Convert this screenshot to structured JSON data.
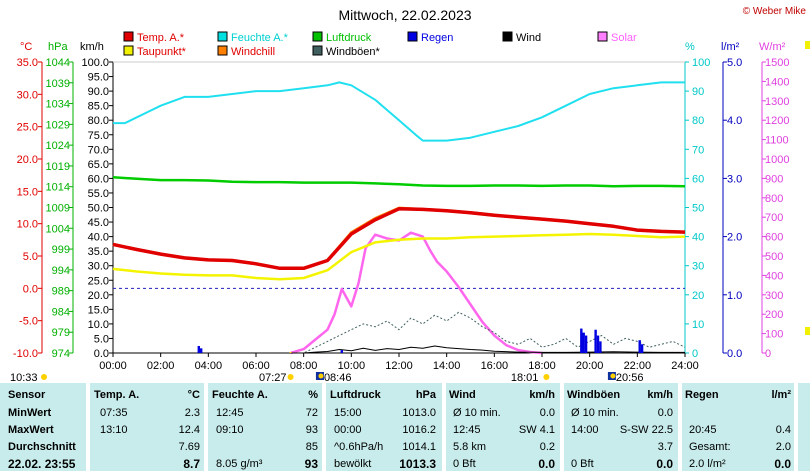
{
  "title": "Mittwoch, 22.02.2023",
  "copyright": "© Weber Mike",
  "chart_data": {
    "type": "line",
    "x_ticks": [
      "00:00",
      "02:00",
      "04:00",
      "06:00",
      "08:00",
      "10:00",
      "12:00",
      "14:00",
      "16:00",
      "18:00",
      "20:00",
      "22:00",
      "24:00"
    ],
    "axis_units": {
      "temp": "°C",
      "pressure": "hPa",
      "wind": "km/h",
      "humidity": "%",
      "rain": "l/m²",
      "solar": "W/m²"
    },
    "axes": {
      "temp": {
        "ticks": [
          "35.0",
          "30.0",
          "25.0",
          "20.0",
          "15.0",
          "10.0",
          "5.0",
          "0.0",
          "-5.0",
          "-10.0"
        ],
        "range": [
          -10,
          35
        ],
        "color": "#e00000"
      },
      "pressure": {
        "ticks": [
          "1044",
          "1039",
          "1034",
          "1029",
          "1024",
          "1019",
          "1014",
          "1009",
          "1004",
          "999",
          "994",
          "989",
          "984",
          "979",
          "974"
        ],
        "range": [
          974,
          1044
        ],
        "color": "#00b000"
      },
      "wind": {
        "ticks": [
          "100.0",
          "95.0",
          "90.0",
          "85.0",
          "80.0",
          "75.0",
          "70.0",
          "65.0",
          "60.0",
          "55.0",
          "50.0",
          "45.0",
          "40.0",
          "35.0",
          "30.0",
          "25.0",
          "20.0",
          "15.0",
          "10.0",
          "5.0",
          "0.0"
        ],
        "range": [
          0,
          100
        ],
        "color": "#000000"
      },
      "humidity": {
        "ticks": [
          "100",
          "90",
          "80",
          "70",
          "60",
          "50",
          "40",
          "30",
          "20",
          "10",
          "0"
        ],
        "range": [
          0,
          100
        ],
        "color": "#00c8c8"
      },
      "rain": {
        "ticks": [
          "5.0",
          "4.0",
          "3.0",
          "2.0",
          "1.0",
          "0.0"
        ],
        "range": [
          0,
          5
        ],
        "color": "#0000c0"
      },
      "solar": {
        "ticks": [
          "1500",
          "1400",
          "1300",
          "1200",
          "1100",
          "1000",
          "900",
          "800",
          "700",
          "600",
          "500",
          "400",
          "300",
          "200",
          "100",
          "0"
        ],
        "range": [
          0,
          1500
        ],
        "color": "#e040e0"
      }
    },
    "legend": [
      {
        "name": "Temp. A.*",
        "color": "#e00000"
      },
      {
        "name": "Feuchte A.*",
        "color": "#00e0e0"
      },
      {
        "name": "Luftdruck",
        "color": "#00c000"
      },
      {
        "name": "Regen",
        "color": "#0000e0"
      },
      {
        "name": "Wind",
        "color": "#000000"
      },
      {
        "name": "Solar",
        "color": "#ff80ff"
      },
      {
        "name": "Taupunkt*",
        "color": "#f0f000"
      },
      {
        "name": "Windchill",
        "color": "#ff8000"
      },
      {
        "name": "Windböen*",
        "color": "#406060"
      }
    ],
    "series": [
      {
        "name": "Temp. A.*",
        "axis": "temp",
        "hours": [
          0,
          1,
          2,
          3,
          4,
          5,
          6,
          7,
          8,
          9,
          10,
          11,
          12,
          13,
          14,
          15,
          16,
          17,
          18,
          19,
          20,
          21,
          22,
          23,
          24
        ],
        "values": [
          6.8,
          6.0,
          5.3,
          4.7,
          4.4,
          4.3,
          3.8,
          3.1,
          3.1,
          4.3,
          8.4,
          10.6,
          12.3,
          12.2,
          12.0,
          11.7,
          11.3,
          11.0,
          10.7,
          10.4,
          10.0,
          9.6,
          9.0,
          8.8,
          8.7
        ]
      },
      {
        "name": "Windchill",
        "axis": "temp",
        "hours": [
          0,
          1,
          2,
          3,
          4,
          5,
          6,
          7,
          8,
          9,
          10,
          11,
          12,
          13,
          14,
          15,
          16,
          17,
          18,
          19,
          20,
          21,
          22,
          23,
          24
        ],
        "values": [
          6.8,
          6.0,
          5.3,
          4.7,
          4.4,
          4.3,
          3.8,
          3.1,
          3.1,
          4.3,
          8.6,
          10.8,
          12.4,
          12.2,
          12.0,
          11.7,
          11.3,
          11.0,
          10.7,
          10.4,
          10.0,
          9.6,
          9.0,
          8.8,
          8.7
        ]
      },
      {
        "name": "Taupunkt*",
        "axis": "temp",
        "hours": [
          0,
          1,
          2,
          3,
          4,
          5,
          6,
          7,
          8,
          9,
          10,
          11,
          12,
          13,
          14,
          15,
          16,
          17,
          18,
          19,
          20,
          21,
          22,
          23,
          24
        ],
        "values": [
          3.0,
          2.6,
          2.3,
          2.1,
          2.0,
          2.0,
          1.6,
          1.4,
          1.6,
          2.8,
          5.6,
          7.1,
          7.5,
          7.7,
          7.7,
          7.9,
          8.0,
          8.1,
          8.2,
          8.3,
          8.4,
          8.3,
          8.1,
          7.9,
          8.0
        ]
      },
      {
        "name": "Feuchte A.*",
        "axis": "humidity",
        "hours": [
          0,
          0.5,
          1,
          1.5,
          2,
          3,
          4,
          5,
          6,
          7,
          8,
          9,
          9.5,
          10,
          11,
          12,
          12.7,
          13,
          14,
          15,
          16,
          17,
          18,
          19,
          20,
          21,
          22,
          23,
          24
        ],
        "values": [
          79,
          79,
          81,
          83,
          85,
          88,
          88,
          89,
          90,
          90,
          91,
          92,
          93,
          92,
          87,
          80,
          75,
          73,
          73,
          74,
          76,
          78,
          81,
          85,
          89,
          91,
          92,
          93,
          93
        ]
      },
      {
        "name": "Luftdruck",
        "axis": "pressure",
        "hours": [
          0,
          1,
          2,
          3,
          4,
          5,
          6,
          7,
          8,
          9,
          10,
          11,
          12,
          13,
          14,
          15,
          16,
          17,
          18,
          19,
          20,
          21,
          22,
          23,
          24
        ],
        "values": [
          1016.3,
          1015.9,
          1015.6,
          1015.6,
          1015.5,
          1015.2,
          1015.1,
          1015.1,
          1015.0,
          1015.0,
          1015.0,
          1014.8,
          1014.6,
          1014.3,
          1014.2,
          1014.2,
          1014.3,
          1014.3,
          1014.2,
          1014.3,
          1014.3,
          1014.1,
          1014.2,
          1014.2,
          1014.1
        ]
      },
      {
        "name": "Solar",
        "axis": "solar",
        "hours": [
          7.45,
          8.0,
          8.5,
          9.0,
          9.3,
          9.6,
          10.0,
          10.3,
          10.6,
          11.0,
          11.5,
          12.0,
          12.5,
          13.0,
          13.3,
          13.6,
          14.0,
          14.5,
          15.0,
          15.5,
          16.0,
          16.5,
          17.0,
          17.5,
          18.0,
          18.02
        ],
        "values": [
          0,
          20,
          70,
          120,
          200,
          330,
          240,
          360,
          540,
          610,
          590,
          580,
          620,
          600,
          530,
          470,
          420,
          340,
          250,
          160,
          90,
          40,
          15,
          5,
          0,
          0
        ]
      },
      {
        "name": "Wind",
        "axis": "wind",
        "hours": [
          0,
          8,
          8.5,
          9,
          9.5,
          10,
          10.5,
          11,
          11.5,
          12,
          12.5,
          13,
          13.5,
          14,
          14.5,
          15,
          15.5,
          16,
          17,
          18,
          19,
          20,
          21,
          22,
          23,
          24
        ],
        "values": [
          0,
          0,
          0.3,
          0.5,
          1.2,
          0.8,
          1.6,
          0.9,
          1.5,
          1.2,
          2.0,
          1.6,
          2.4,
          1.8,
          1.5,
          1.2,
          1.0,
          0.6,
          0.3,
          0.2,
          0.2,
          0.3,
          0.4,
          0.3,
          0.2,
          0.2
        ]
      },
      {
        "name": "Windböen*",
        "axis": "wind",
        "hours": [
          0,
          8,
          8.5,
          9,
          9.5,
          10,
          10.5,
          11,
          11.5,
          12,
          12.5,
          13,
          13.5,
          14,
          14.5,
          15,
          15.5,
          16,
          16.5,
          17,
          17.5,
          18,
          18.5,
          19,
          19.5,
          20,
          20.5,
          21,
          21.5,
          22,
          22.5,
          23,
          23.5,
          24
        ],
        "values": [
          0,
          0,
          2,
          4,
          6,
          8,
          10,
          9,
          11,
          8,
          12,
          10,
          13,
          11,
          14,
          12,
          9,
          7,
          4,
          3,
          5,
          2,
          3,
          5,
          2,
          4,
          6,
          3,
          5,
          4,
          2,
          3,
          4,
          2
        ]
      },
      {
        "name": "Regen",
        "axis": "rain",
        "hours": [
          3.6,
          3.7,
          9.6,
          19.65,
          19.75,
          19.85,
          20.25,
          20.35,
          20.45,
          22.1,
          22.2
        ],
        "values": [
          0.12,
          0.08,
          0.05,
          0.42,
          0.35,
          0.3,
          0.4,
          0.3,
          0.2,
          0.22,
          0.15
        ]
      }
    ],
    "markers": {
      "sunrise": "07:27",
      "sunset": "18:01",
      "moonrise": "08:46",
      "moonset": "20:56",
      "now": "10:33"
    },
    "grid": "horizontal at 0°C (dashed)"
  },
  "stats": {
    "headers": [
      "Sensor",
      "Temp. A.",
      "°C",
      "Feuchte A.",
      "%",
      "Luftdruck",
      "hPa",
      "Wind",
      "km/h",
      "Windböen",
      "km/h",
      "Regen",
      "l/m²"
    ],
    "row_labels": [
      "MinWert",
      "MaxWert",
      "Durchschnitt",
      "22.02. 23:55"
    ],
    "temp": [
      [
        "07:35",
        "2.3"
      ],
      [
        "13:10",
        "12.4"
      ],
      [
        "",
        "7.69"
      ],
      [
        "",
        "8.7"
      ]
    ],
    "hum": [
      [
        "12:45",
        "72"
      ],
      [
        "09:10",
        "93"
      ],
      [
        "",
        "85"
      ],
      [
        "8.05 g/m³",
        "93"
      ]
    ],
    "press": [
      [
        "15:00",
        "1013.0"
      ],
      [
        "00:00",
        "1016.2"
      ],
      [
        "^0.6hPa/h",
        "1014.1"
      ],
      [
        "bewölkt",
        "1013.3"
      ]
    ],
    "wind": [
      [
        "Ø 10 min.",
        "0.0"
      ],
      [
        "12:45",
        "SW 4.1"
      ],
      [
        "5.8 km",
        "0.2"
      ],
      [
        "0 Bft",
        "0.0"
      ]
    ],
    "gust": [
      [
        "Ø 10 min.",
        "0.0"
      ],
      [
        "14:00",
        "S-SW 22.5"
      ],
      [
        "",
        "3.7"
      ],
      [
        "0 Bft",
        "0.0"
      ]
    ],
    "rain": [
      [
        "",
        ""
      ],
      [
        "20:45",
        "0.4"
      ],
      [
        "Gesamt:",
        "2.0"
      ],
      [
        "2.0 l/m²",
        "0.0"
      ]
    ]
  }
}
